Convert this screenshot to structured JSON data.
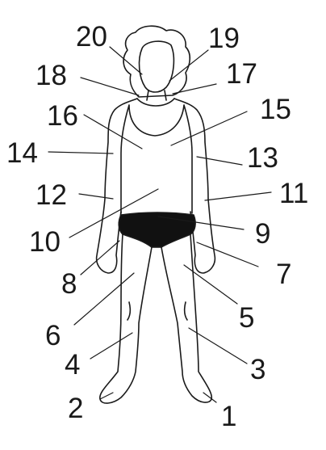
{
  "diagram": {
    "colors": {
      "ink": "#1a1a1a",
      "skin": "#ffffff",
      "underwear": "#111111"
    },
    "labels": [
      {
        "id": "1",
        "text": "1"
      },
      {
        "id": "2",
        "text": "2"
      },
      {
        "id": "3",
        "text": "3"
      },
      {
        "id": "4",
        "text": "4"
      },
      {
        "id": "5",
        "text": "5"
      },
      {
        "id": "6",
        "text": "6"
      },
      {
        "id": "7",
        "text": "7"
      },
      {
        "id": "8",
        "text": "8"
      },
      {
        "id": "9",
        "text": "9"
      },
      {
        "id": "10",
        "text": "10"
      },
      {
        "id": "11",
        "text": "11"
      },
      {
        "id": "12",
        "text": "12"
      },
      {
        "id": "13",
        "text": "13"
      },
      {
        "id": "14",
        "text": "14"
      },
      {
        "id": "15",
        "text": "15"
      },
      {
        "id": "16",
        "text": "16"
      },
      {
        "id": "17",
        "text": "17"
      },
      {
        "id": "18",
        "text": "18"
      },
      {
        "id": "19",
        "text": "19"
      },
      {
        "id": "20",
        "text": "20"
      }
    ]
  }
}
